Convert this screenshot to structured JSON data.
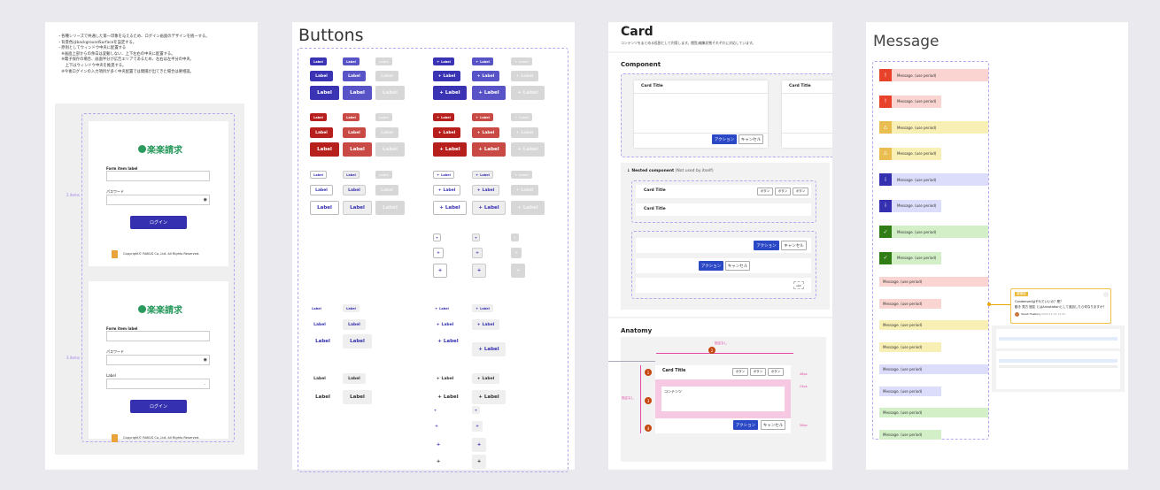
{
  "login_frame": {
    "notes": [
      "・各種シリーズで共通した第一印象を与えるため、ログイン画面のデザインを統一する。",
      "・背景色はbackgroundSurfaceを設定する。",
      "・原則としてウィンドウ中央に配置する",
      "　※画面上部からの余白は変動しない、上下左右の中央に配置する。",
      "　※電子保存の場合、画面半分が広告エリアであるため、左右は左半分の中央、",
      "　　上下はウィンドウ中央を推奨する。",
      "　※今後ログインの入力項目が多く中央配置では間隔が出てきた場合は要相談。"
    ],
    "items_label_1": "2 items",
    "items_label_2": "3 items",
    "logo_text": "楽楽請求",
    "form_label": "Form item label",
    "password_label": "パスワード",
    "select_label": "Label",
    "login_button": "ログイン",
    "copyright": "Copyright© RAKUS Co.,Ltd. All Rights Reserved."
  },
  "buttons_frame": {
    "title": "Buttons",
    "label": "Label",
    "icon": "plus-icon",
    "colors": {
      "primary": "#3a33b3",
      "primary_hover": "#5853c6",
      "danger": "#b71f1c",
      "danger_hover": "#c94a44",
      "disabled": "#d7d7d7"
    }
  },
  "card_frame": {
    "title": "Card",
    "subtitle": "コンテンツをまとめる役割として利用します。閲覧/編集状態それぞれに対応しています。",
    "component_heading": "Component",
    "card_title": "Card Title",
    "action": "アクション",
    "cancel": "キャンセル",
    "nested_heading": "↓ Nested component",
    "nested_note": "(Not used by itself)",
    "small_button": "ボタン",
    "slot": "slot",
    "anatomy_heading": "Anatomy",
    "unspecified": "指定なし",
    "content": "コンテンツ",
    "dim_48": "48px",
    "dim_24": "24px",
    "dim_56": "56px",
    "markers": [
      "1",
      "2",
      "3",
      "4"
    ]
  },
  "message_frame": {
    "title": "Message",
    "message_text": "Message. (use period)",
    "types": [
      {
        "kind": "error",
        "icon": "error-icon",
        "color": "#e8432a",
        "bg": "#f9d4d0"
      },
      {
        "kind": "warning",
        "icon": "warning-icon",
        "color": "#e9bd50",
        "bg": "#f8efb4"
      },
      {
        "kind": "info",
        "icon": "info-icon",
        "color": "#3430b0",
        "bg": "#dcdcfb"
      },
      {
        "kind": "success",
        "icon": "check-icon",
        "color": "#2f7d14",
        "bg": "#d3efc7"
      }
    ],
    "comment": {
      "badge": "要確認",
      "line1": "Condensedはそれでいいの？是？",
      "line2": "動き 見方 固定 とはAnnotationとして追加したら何なりますか？",
      "user": "Sarah Hosbury",
      "time": "2024-12-01 14:22"
    }
  }
}
